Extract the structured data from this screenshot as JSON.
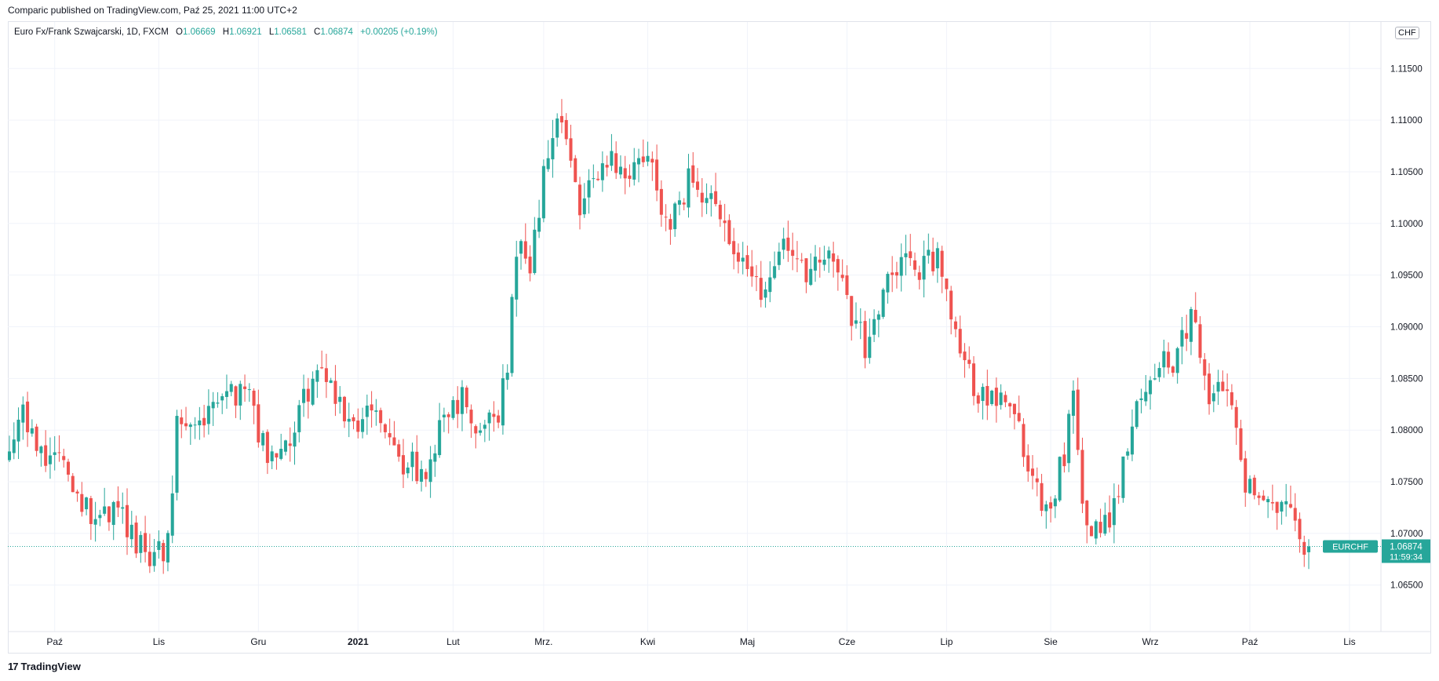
{
  "header": {
    "published": "Comparic published on TradingView.com, Paź 25, 2021 11:00 UTC+2"
  },
  "legend": {
    "symbol": "Euro Fx/Frank Szwajcarski, 1D, FXCM",
    "o_label": "O",
    "o": "1.06669",
    "h_label": "H",
    "h": "1.06921",
    "l_label": "L",
    "l": "1.06581",
    "c_label": "C",
    "c": "1.06874",
    "change": "+0.00205 (+0.19%)"
  },
  "currency": "CHF",
  "footer": {
    "brand": "TradingView",
    "logo": "17"
  },
  "price_tag": {
    "ticker": "EURCHF",
    "price": "1.06874",
    "countdown": "11:59:34"
  },
  "colors": {
    "up": "#26a69a",
    "down": "#ef5350",
    "grid": "#f0f3fa",
    "last_line": "#26a69a"
  },
  "chart_data": {
    "type": "candlestick",
    "ylim": [
      1.0605,
      1.1195
    ],
    "y_ticks": [
      "1.06500",
      "1.07000",
      "1.07500",
      "1.08000",
      "1.08500",
      "1.09000",
      "1.09500",
      "1.10000",
      "1.10500",
      "1.11000",
      "1.11500"
    ],
    "x_ticks": [
      {
        "label": "Paź",
        "i": 10,
        "bold": false
      },
      {
        "label": "Lis",
        "i": 33,
        "bold": false
      },
      {
        "label": "Gru",
        "i": 55,
        "bold": false
      },
      {
        "label": "2021",
        "i": 77,
        "bold": true
      },
      {
        "label": "Lut",
        "i": 98,
        "bold": false
      },
      {
        "label": "Mrz.",
        "i": 118,
        "bold": false
      },
      {
        "label": "Kwi",
        "i": 141,
        "bold": false
      },
      {
        "label": "Maj",
        "i": 163,
        "bold": false
      },
      {
        "label": "Cze",
        "i": 185,
        "bold": false
      },
      {
        "label": "Lip",
        "i": 207,
        "bold": false
      },
      {
        "label": "Sie",
        "i": 230,
        "bold": false
      },
      {
        "label": "Wrz",
        "i": 252,
        "bold": false
      },
      {
        "label": "Paź",
        "i": 274,
        "bold": false
      },
      {
        "label": "Lis",
        "i": 296,
        "bold": false
      }
    ],
    "last_price": 1.06874,
    "keypoints": [
      [
        0,
        1.077
      ],
      [
        3,
        1.081
      ],
      [
        7,
        1.078
      ],
      [
        13,
        1.076
      ],
      [
        17,
        1.072
      ],
      [
        20,
        1.071
      ],
      [
        24,
        1.073
      ],
      [
        27,
        1.07
      ],
      [
        30,
        1.068
      ],
      [
        35,
        1.069
      ],
      [
        37,
        1.08
      ],
      [
        40,
        1.081
      ],
      [
        45,
        1.082
      ],
      [
        48,
        1.083
      ],
      [
        52,
        1.084
      ],
      [
        56,
        1.079
      ],
      [
        59,
        1.076
      ],
      [
        63,
        1.08
      ],
      [
        65,
        1.084
      ],
      [
        69,
        1.085
      ],
      [
        73,
        1.083
      ],
      [
        76,
        1.081
      ],
      [
        80,
        1.082
      ],
      [
        84,
        1.078
      ],
      [
        87,
        1.077
      ],
      [
        92,
        1.076
      ],
      [
        96,
        1.081
      ],
      [
        100,
        1.083
      ],
      [
        104,
        1.08
      ],
      [
        108,
        1.082
      ],
      [
        110,
        1.086
      ],
      [
        112,
        1.098
      ],
      [
        115,
        1.096
      ],
      [
        118,
        1.105
      ],
      [
        121,
        1.11
      ],
      [
        124,
        1.106
      ],
      [
        126,
        1.102
      ],
      [
        130,
        1.105
      ],
      [
        133,
        1.106
      ],
      [
        136,
        1.105
      ],
      [
        139,
        1.107
      ],
      [
        142,
        1.106
      ],
      [
        145,
        1.1
      ],
      [
        148,
        1.101
      ],
      [
        150,
        1.104
      ],
      [
        153,
        1.102
      ],
      [
        156,
        1.103
      ],
      [
        160,
        1.096
      ],
      [
        163,
        1.095
      ],
      [
        166,
        1.094
      ],
      [
        169,
        1.096
      ],
      [
        172,
        1.098
      ],
      [
        175,
        1.095
      ],
      [
        178,
        1.097
      ],
      [
        181,
        1.096
      ],
      [
        184,
        1.094
      ],
      [
        187,
        1.09
      ],
      [
        189,
        1.088
      ],
      [
        192,
        1.091
      ],
      [
        195,
        1.095
      ],
      [
        198,
        1.096
      ],
      [
        202,
        1.096
      ],
      [
        205,
        1.0965
      ],
      [
        208,
        1.092
      ],
      [
        211,
        1.087
      ],
      [
        213,
        1.084
      ],
      [
        216,
        1.083
      ],
      [
        220,
        1.084
      ],
      [
        223,
        1.08
      ],
      [
        227,
        1.074
      ],
      [
        230,
        1.072
      ],
      [
        233,
        1.078
      ],
      [
        235,
        1.083
      ],
      [
        237,
        1.072
      ],
      [
        239,
        1.071
      ],
      [
        243,
        1.071
      ],
      [
        246,
        1.076
      ],
      [
        248,
        1.081
      ],
      [
        251,
        1.084
      ],
      [
        255,
        1.088
      ],
      [
        257,
        1.086
      ],
      [
        260,
        1.09
      ],
      [
        261,
        1.0925
      ],
      [
        263,
        1.086
      ],
      [
        265,
        1.083
      ],
      [
        268,
        1.085
      ],
      [
        270,
        1.081
      ],
      [
        273,
        1.075
      ],
      [
        276,
        1.072
      ],
      [
        279,
        1.072
      ],
      [
        282,
        1.074
      ],
      [
        284,
        1.07
      ],
      [
        286,
        1.067
      ],
      [
        287,
        1.0687
      ]
    ],
    "candles_seed": 20211025,
    "count": 288
  }
}
